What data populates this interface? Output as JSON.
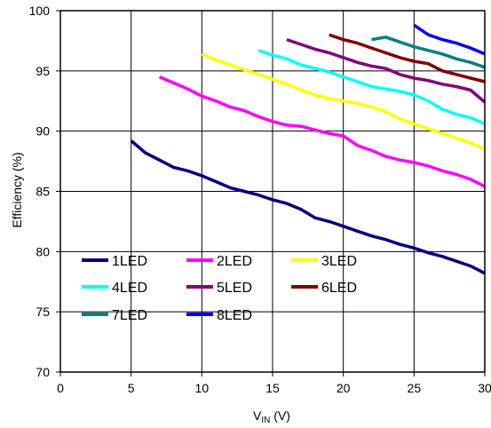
{
  "chart_data": {
    "type": "line",
    "title": "",
    "xlabel": {
      "main": "V",
      "sub": "IN",
      "unit": " (V)"
    },
    "ylabel": "Efficiency (%)",
    "xlim": [
      0,
      30
    ],
    "ylim": [
      70,
      100
    ],
    "xticks": [
      0,
      5,
      10,
      15,
      20,
      25,
      30
    ],
    "yticks": [
      70,
      75,
      80,
      85,
      90,
      95,
      100
    ],
    "grid": true,
    "legend_position": "lower-left",
    "series": [
      {
        "name": "1LED",
        "color": "#000080",
        "x": [
          5,
          6,
          7,
          8,
          9,
          10,
          11,
          12,
          13,
          14,
          15,
          16,
          17,
          18,
          19,
          20,
          21,
          22,
          23,
          24,
          25,
          26,
          27,
          28,
          29,
          30
        ],
        "y": [
          89.2,
          88.2,
          87.6,
          87.0,
          86.7,
          86.3,
          85.8,
          85.3,
          85.0,
          84.7,
          84.3,
          84.0,
          83.5,
          82.8,
          82.5,
          82.1,
          81.7,
          81.3,
          81.0,
          80.6,
          80.3,
          79.9,
          79.6,
          79.2,
          78.8,
          78.2
        ]
      },
      {
        "name": "2LED",
        "color": "#ff00ff",
        "x": [
          7,
          8,
          9,
          10,
          11,
          12,
          13,
          14,
          15,
          16,
          17,
          18,
          19,
          20,
          21,
          22,
          23,
          24,
          25,
          26,
          27,
          28,
          29,
          30
        ],
        "y": [
          94.5,
          94.0,
          93.5,
          92.9,
          92.5,
          92.0,
          91.7,
          91.2,
          90.8,
          90.5,
          90.4,
          90.1,
          89.8,
          89.6,
          88.8,
          88.4,
          87.9,
          87.6,
          87.4,
          87.1,
          86.7,
          86.4,
          86.0,
          85.4
        ]
      },
      {
        "name": "3LED",
        "color": "#ffff00",
        "x": [
          10,
          11,
          12,
          13,
          14,
          15,
          16,
          17,
          18,
          19,
          20,
          21,
          22,
          23,
          24,
          25,
          26,
          27,
          28,
          29,
          30
        ],
        "y": [
          96.4,
          95.9,
          95.5,
          95.1,
          94.7,
          94.3,
          93.9,
          93.4,
          93.0,
          92.7,
          92.5,
          92.3,
          92.0,
          91.6,
          91.0,
          90.6,
          90.2,
          89.8,
          89.4,
          89.0,
          88.5
        ]
      },
      {
        "name": "4LED",
        "color": "#00ffff",
        "x": [
          14,
          15,
          16,
          17,
          18,
          19,
          20,
          21,
          22,
          23,
          24,
          25,
          26,
          27,
          28,
          29,
          30
        ],
        "y": [
          96.7,
          96.3,
          96.0,
          95.5,
          95.2,
          94.9,
          94.5,
          94.1,
          93.7,
          93.5,
          93.3,
          93.0,
          92.5,
          91.8,
          91.4,
          91.1,
          90.6
        ]
      },
      {
        "name": "5LED",
        "color": "#800080",
        "x": [
          16,
          17,
          18,
          19,
          20,
          21,
          22,
          23,
          24,
          25,
          26,
          27,
          28,
          29,
          30
        ],
        "y": [
          97.6,
          97.2,
          96.8,
          96.5,
          96.1,
          95.7,
          95.4,
          95.2,
          94.7,
          94.4,
          94.2,
          93.9,
          93.7,
          93.4,
          92.4
        ]
      },
      {
        "name": "6LED",
        "color": "#800000",
        "x": [
          19,
          20,
          21,
          22,
          23,
          24,
          25,
          26,
          27,
          28,
          29,
          30
        ],
        "y": [
          98.0,
          97.6,
          97.3,
          96.9,
          96.5,
          96.1,
          95.8,
          95.6,
          95.0,
          94.7,
          94.4,
          94.1
        ]
      },
      {
        "name": "7LED",
        "color": "#008080",
        "x": [
          22,
          23,
          24,
          25,
          26,
          27,
          28,
          29,
          30
        ],
        "y": [
          97.6,
          97.8,
          97.4,
          97.0,
          96.7,
          96.4,
          96.0,
          95.7,
          95.3
        ]
      },
      {
        "name": "8LED",
        "color": "#0000ff",
        "x": [
          25,
          26,
          27,
          28,
          29,
          30
        ],
        "y": [
          98.8,
          98.0,
          97.6,
          97.3,
          96.9,
          96.4
        ]
      }
    ]
  }
}
